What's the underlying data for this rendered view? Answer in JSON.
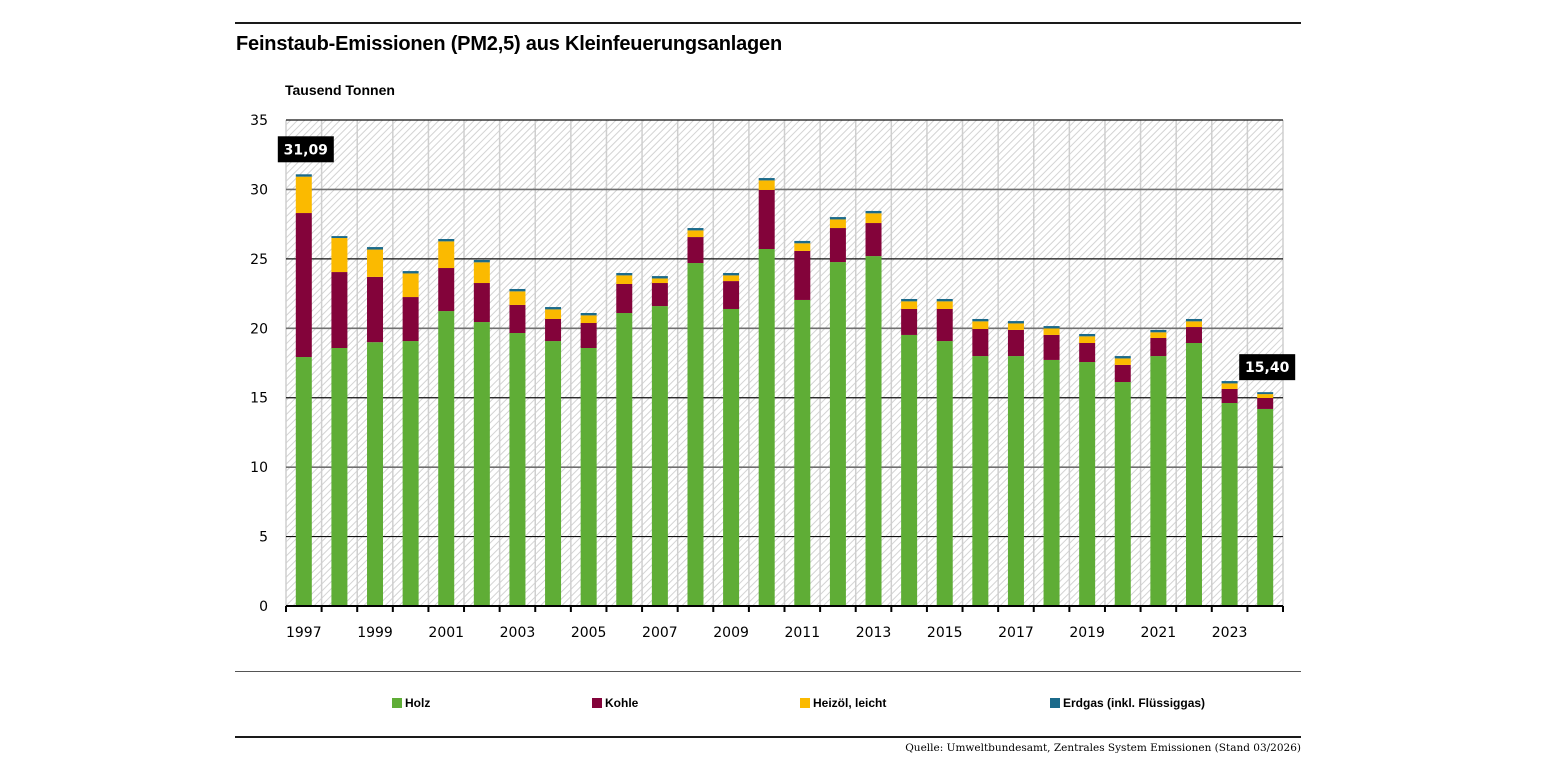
{
  "header": {
    "title": "Feinstaub-Emissionen (PM2,5) aus Kleinfeuerungsanlagen",
    "unit_label": "Tausend Tonnen"
  },
  "footer": {
    "source": "Quelle: Umweltbundesamt, Zentrales System Emissionen (Stand 03/2026)"
  },
  "legend": [
    {
      "name": "Holz",
      "color": "#5fad36"
    },
    {
      "name": "Kohle",
      "color": "#83033a"
    },
    {
      "name": "Heizöl, leicht",
      "color": "#fbba00"
    },
    {
      "name": "Erdgas (inkl. Flüssiggas)",
      "color": "#1b6a8a"
    }
  ],
  "chart_data": {
    "type": "bar",
    "stacked": true,
    "title": "Feinstaub-Emissionen (PM2,5) aus Kleinfeuerungsanlagen",
    "xlabel": "",
    "ylabel": "Tausend Tonnen",
    "ylim": [
      0,
      35
    ],
    "yticks": [
      0,
      5,
      10,
      15,
      20,
      25,
      30,
      35
    ],
    "grid": true,
    "legend_position": "bottom",
    "categories": [
      "1997",
      "1998",
      "1999",
      "2000",
      "2001",
      "2002",
      "2003",
      "2004",
      "2005",
      "2006",
      "2007",
      "2008",
      "2009",
      "2010",
      "2011",
      "2012",
      "2013",
      "2014",
      "2015",
      "2016",
      "2017",
      "2018",
      "2019",
      "2020",
      "2021",
      "2022",
      "2023",
      "2024"
    ],
    "xtick_labels": [
      "1997",
      "",
      "1999",
      "",
      "2001",
      "",
      "2003",
      "",
      "2005",
      "",
      "2007",
      "",
      "2009",
      "",
      "2011",
      "",
      "2013",
      "",
      "2015",
      "",
      "2017",
      "",
      "2019",
      "",
      "2021",
      "",
      "2023",
      ""
    ],
    "series": [
      {
        "name": "Holz",
        "color": "#5fad36",
        "values": [
          17.93,
          18.58,
          19.0,
          19.08,
          21.24,
          20.45,
          19.66,
          19.08,
          18.58,
          21.1,
          21.6,
          24.7,
          21.39,
          25.71,
          22.04,
          24.77,
          25.2,
          19.52,
          19.08,
          18.0,
          18.0,
          17.72,
          17.57,
          16.13,
          18.0,
          18.94,
          14.62,
          14.19
        ]
      },
      {
        "name": "Kohle",
        "color": "#83033a",
        "values": [
          10.37,
          5.47,
          4.7,
          3.17,
          3.1,
          2.81,
          2.02,
          1.59,
          1.8,
          2.09,
          1.66,
          1.87,
          2.01,
          4.25,
          3.53,
          2.45,
          2.38,
          1.87,
          2.31,
          1.95,
          1.88,
          1.8,
          1.37,
          1.23,
          1.3,
          1.15,
          1.01,
          0.79
        ]
      },
      {
        "name": "Heizöl, leicht",
        "color": "#fbba00",
        "values": [
          2.62,
          2.45,
          1.97,
          1.7,
          1.92,
          1.49,
          0.98,
          0.69,
          0.55,
          0.62,
          0.33,
          0.48,
          0.41,
          0.69,
          0.55,
          0.62,
          0.7,
          0.55,
          0.55,
          0.55,
          0.47,
          0.47,
          0.48,
          0.47,
          0.41,
          0.41,
          0.4,
          0.28
        ]
      },
      {
        "name": "Erdgas (inkl. Flüssiggas)",
        "color": "#1b6a8a",
        "values": [
          0.17,
          0.14,
          0.18,
          0.17,
          0.17,
          0.17,
          0.17,
          0.17,
          0.17,
          0.17,
          0.17,
          0.17,
          0.17,
          0.17,
          0.17,
          0.17,
          0.17,
          0.17,
          0.17,
          0.17,
          0.17,
          0.17,
          0.17,
          0.17,
          0.17,
          0.17,
          0.17,
          0.14
        ]
      }
    ],
    "annotations": [
      {
        "category": "1997",
        "text": "31,09"
      },
      {
        "category": "2024",
        "text": "15,40"
      }
    ]
  }
}
